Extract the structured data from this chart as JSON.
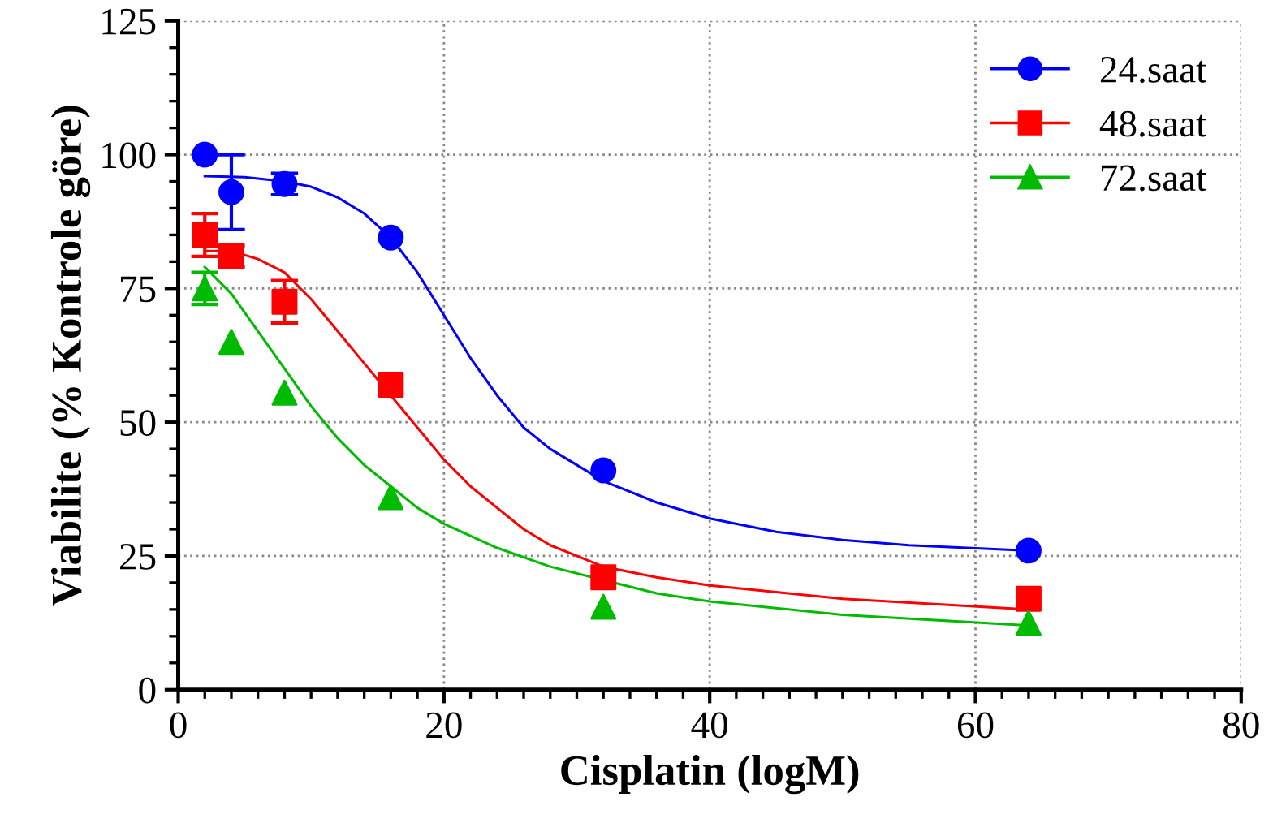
{
  "chart_data": {
    "type": "scatter",
    "xlabel": "Cisplatin (logM)",
    "ylabel": "Viabilite (% Kontrole göre)",
    "xlim": [
      0,
      80
    ],
    "xticks": [
      0,
      20,
      40,
      60,
      80
    ],
    "ylim": [
      0,
      125
    ],
    "yticks": [
      0,
      25,
      50,
      75,
      100,
      125
    ],
    "grid": true,
    "legend": "top right",
    "series": [
      {
        "name": "24.saat",
        "color": "#0000ff",
        "marker": "circle",
        "x": [
          2,
          4,
          8,
          16,
          32,
          64
        ],
        "values": [
          100,
          93,
          94.5,
          84.5,
          41,
          26
        ],
        "errors": [
          null,
          7,
          2,
          null,
          null,
          null
        ]
      },
      {
        "name": "48.saat",
        "color": "#ff0000",
        "marker": "square",
        "x": [
          2,
          4,
          8,
          16,
          32,
          64
        ],
        "values": [
          85,
          81,
          72.5,
          57,
          21,
          17
        ],
        "errors": [
          4,
          2,
          4,
          null,
          null,
          null
        ]
      },
      {
        "name": "72.saat",
        "color": "#00bb00",
        "marker": "triangle",
        "x": [
          2,
          4,
          8,
          16,
          32,
          64
        ],
        "values": [
          75,
          65,
          55.5,
          36,
          15.5,
          12.5
        ],
        "errors": [
          3,
          null,
          null,
          null,
          null,
          null
        ]
      },
      {
        "type": "line",
        "color": "#0000ff",
        "x": [
          2,
          5,
          8,
          10,
          12,
          14,
          16,
          18,
          20,
          22,
          24,
          26,
          28,
          30,
          32,
          36,
          40,
          45,
          50,
          55,
          64
        ],
        "values": [
          96,
          95.8,
          95,
          94,
          92,
          89,
          84.5,
          78,
          70,
          62,
          55,
          49,
          45,
          42,
          39,
          35,
          32,
          29.5,
          28,
          27,
          26
        ]
      },
      {
        "type": "line",
        "color": "#ff0000",
        "x": [
          2,
          4,
          6,
          8,
          10,
          12,
          14,
          16,
          18,
          20,
          22,
          24,
          26,
          28,
          30,
          32,
          36,
          40,
          50,
          64
        ],
        "values": [
          82,
          82,
          80.5,
          78,
          73,
          67,
          61,
          55,
          49,
          43,
          38,
          34,
          30,
          27,
          25,
          23,
          21,
          19.5,
          17,
          15
        ]
      },
      {
        "type": "line",
        "color": "#00bb00",
        "x": [
          2,
          4,
          6,
          8,
          10,
          12,
          14,
          16,
          18,
          20,
          24,
          28,
          36,
          40,
          50,
          64
        ],
        "values": [
          79,
          74,
          67,
          60,
          53,
          47,
          42,
          38,
          34,
          31,
          26.5,
          23,
          18,
          16.5,
          14,
          12
        ]
      }
    ]
  }
}
